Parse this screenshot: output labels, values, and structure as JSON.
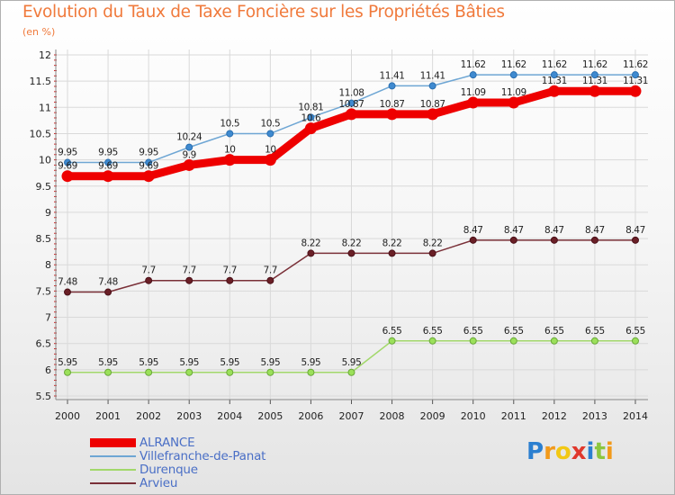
{
  "title": "Evolution du Taux de Taxe Foncière sur les Propriétés Bâties",
  "subtitle": "(en %)",
  "chart_data": {
    "type": "line",
    "title": "Evolution du Taux de Taxe Foncière sur les Propriétés Bâties",
    "ylabel": "(en %)",
    "xlabel": "",
    "x": [
      "2000",
      "2001",
      "2002",
      "2003",
      "2004",
      "2005",
      "2006",
      "2007",
      "2008",
      "2009",
      "2010",
      "2011",
      "2012",
      "2013",
      "2014"
    ],
    "ylim": [
      5.5,
      12
    ],
    "yticks": [
      "5.5",
      "6",
      "6.5",
      "7",
      "7.5",
      "8",
      "8.5",
      "9",
      "9.5",
      "10",
      "10.5",
      "11",
      "11.5",
      "12"
    ],
    "grid": true,
    "legend_position": "bottom-left",
    "series": [
      {
        "name": "ALRANCE",
        "color": "#ee0000",
        "values": [
          9.69,
          9.69,
          9.69,
          9.9,
          10,
          10,
          10.6,
          10.87,
          10.87,
          10.87,
          11.09,
          11.09,
          11.31,
          11.31,
          11.31
        ],
        "labels": [
          "9.69",
          "9.69",
          "9.69",
          "9.9",
          "10",
          "10",
          "10.6",
          "10.87",
          "10.87",
          "10.87",
          "11.09",
          "11.09",
          "11.31",
          "11.31",
          "11.31"
        ]
      },
      {
        "name": "Villefranche-de-Panat",
        "color": "#6ea6d4",
        "values": [
          9.95,
          9.95,
          9.95,
          10.24,
          10.5,
          10.5,
          10.81,
          11.08,
          11.41,
          11.41,
          11.62,
          11.62,
          11.62,
          11.62,
          11.62
        ],
        "labels": [
          "9.95",
          "9.95",
          "9.95",
          "10.24",
          "10.5",
          "10.5",
          "10.81",
          "11.08",
          "11.41",
          "11.41",
          "11.62",
          "11.62",
          "11.62",
          "11.62",
          "11.62"
        ]
      },
      {
        "name": "Durenque",
        "color": "#a2d86a",
        "values": [
          5.95,
          5.95,
          5.95,
          5.95,
          5.95,
          5.95,
          5.95,
          5.95,
          6.55,
          6.55,
          6.55,
          6.55,
          6.55,
          6.55,
          6.55
        ],
        "labels": [
          "5.95",
          "5.95",
          "5.95",
          "5.95",
          "5.95",
          "5.95",
          "5.95",
          "5.95",
          "6.55",
          "6.55",
          "6.55",
          "6.55",
          "6.55",
          "6.55",
          "6.55"
        ]
      },
      {
        "name": "Arvieu",
        "color": "#7a3038",
        "values": [
          7.48,
          7.48,
          7.7,
          7.7,
          7.7,
          7.7,
          8.22,
          8.22,
          8.22,
          8.22,
          8.47,
          8.47,
          8.47,
          8.47,
          8.47
        ],
        "labels": [
          "7.48",
          "7.48",
          "7.7",
          "7.7",
          "7.7",
          "7.7",
          "8.22",
          "8.22",
          "8.22",
          "8.22",
          "8.47",
          "8.47",
          "8.47",
          "8.47",
          "8.47"
        ]
      }
    ]
  },
  "logo": {
    "letters": [
      "P",
      "r",
      "o",
      "x",
      "i",
      "t",
      "i"
    ],
    "colors": [
      "#2b7fd0",
      "#f29a1a",
      "#f2c814",
      "#e0382c",
      "#2b7fd0",
      "#8cc63f",
      "#f29a1a"
    ]
  }
}
